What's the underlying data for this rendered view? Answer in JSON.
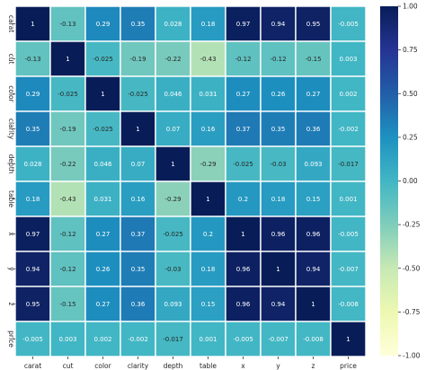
{
  "chart_data": {
    "type": "heatmap",
    "title": "",
    "xlabel": "",
    "ylabel": "",
    "row_labels": [
      "carat",
      "cut",
      "color",
      "clarity",
      "depth",
      "table",
      "x",
      "y",
      "z",
      "price"
    ],
    "col_labels": [
      "carat",
      "cut",
      "color",
      "clarity",
      "depth",
      "table",
      "x",
      "y",
      "z",
      "price"
    ],
    "values": [
      [
        "1",
        "-0.13",
        "0.29",
        "0.35",
        "0.028",
        "0.18",
        "0.97",
        "0.94",
        "0.95",
        "-0.005"
      ],
      [
        "-0.13",
        "1",
        "-0.025",
        "-0.19",
        "-0.22",
        "-0.43",
        "-0.12",
        "-0.12",
        "-0.15",
        "0.003"
      ],
      [
        "0.29",
        "-0.025",
        "1",
        "-0.025",
        "0.046",
        "0.031",
        "0.27",
        "0.26",
        "0.27",
        "0.002"
      ],
      [
        "0.35",
        "-0.19",
        "-0.025",
        "1",
        "0.07",
        "0.16",
        "0.37",
        "0.35",
        "0.36",
        "-0.002"
      ],
      [
        "0.028",
        "-0.22",
        "0.046",
        "0.07",
        "1",
        "-0.29",
        "-0.025",
        "-0.03",
        "0.093",
        "-0.017"
      ],
      [
        "0.18",
        "-0.43",
        "0.031",
        "0.16",
        "-0.29",
        "1",
        "0.2",
        "0.18",
        "0.15",
        "0.001"
      ],
      [
        "0.97",
        "-0.12",
        "0.27",
        "0.37",
        "-0.025",
        "0.2",
        "1",
        "0.96",
        "0.96",
        "-0.005"
      ],
      [
        "0.94",
        "-0.12",
        "0.26",
        "0.35",
        "-0.03",
        "0.18",
        "0.96",
        "1",
        "0.94",
        "-0.007"
      ],
      [
        "0.95",
        "-0.15",
        "0.27",
        "0.36",
        "0.093",
        "0.15",
        "0.96",
        "0.94",
        "1",
        "-0.008"
      ],
      [
        "-0.005",
        "0.003",
        "0.002",
        "-0.002",
        "-0.017",
        "0.001",
        "-0.005",
        "-0.007",
        "-0.008",
        "1"
      ]
    ],
    "colorbar": {
      "colormap": "YlGnBu",
      "range": [
        -1.0,
        1.0
      ],
      "ticks": [
        "1.00",
        "0.75",
        "0.50",
        "0.25",
        "0.00",
        "-0.25",
        "-0.50",
        "-0.75",
        "-1.00"
      ]
    },
    "grid": true,
    "cell_border_color": "#ffffff",
    "annotation_light_color": "#ffffff",
    "annotation_dark_color": "#262626"
  }
}
